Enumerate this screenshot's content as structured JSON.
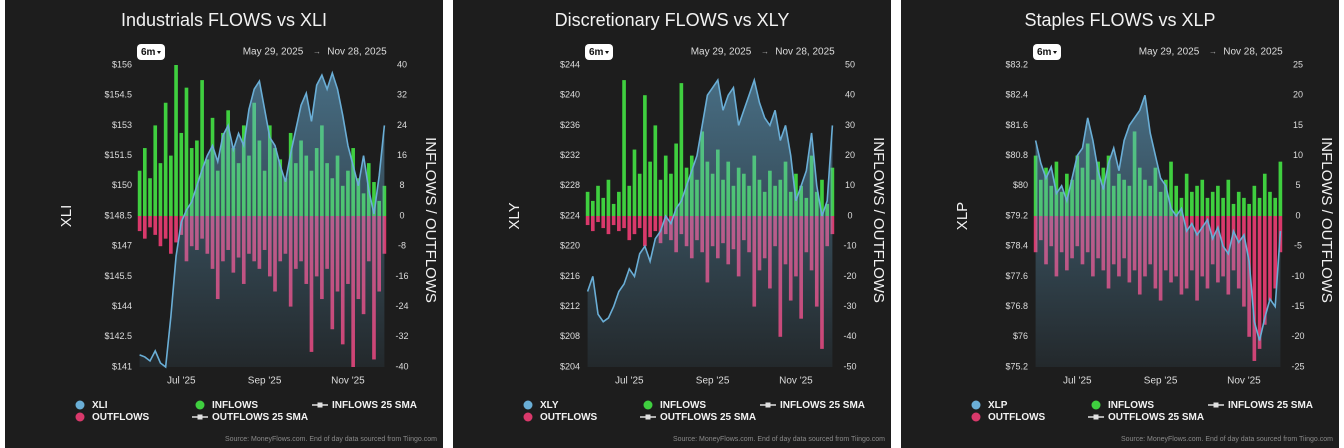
{
  "chart_data": [
    {
      "type": "combo",
      "title": "Industrials FLOWS vs XLI",
      "range_button": "6m",
      "date_start": "May 29, 2025",
      "date_separator": "→",
      "date_end": "Nov 28, 2025",
      "source": "Source: MoneyFlows.com. End of day data sourced from Tiingo.com",
      "ylabel": "XLI",
      "y2label": "INFLOWS / OUTFLOWS",
      "categories": [
        null,
        null,
        null,
        null,
        null,
        null,
        null,
        null,
        "Jul '25",
        null,
        null,
        null,
        null,
        null,
        null,
        null,
        null,
        null,
        null,
        null,
        null,
        null,
        null,
        null,
        "Sep '25",
        null,
        null,
        null,
        null,
        null,
        null,
        null,
        null,
        null,
        null,
        null,
        null,
        null,
        null,
        null,
        "Nov '25",
        null,
        null,
        null,
        null,
        null,
        null,
        null
      ],
      "ylim": [
        141,
        156
      ],
      "yticks": [
        {
          "value": 141,
          "label": "$141"
        },
        {
          "value": 142.5,
          "label": "$142.5"
        },
        {
          "value": 144,
          "label": "$144"
        },
        {
          "value": 145.5,
          "label": "$145.5"
        },
        {
          "value": 147,
          "label": "$147"
        },
        {
          "value": 148.5,
          "label": "$148.5"
        },
        {
          "value": 150,
          "label": "$150"
        },
        {
          "value": 151.5,
          "label": "$151.5"
        },
        {
          "value": 153,
          "label": "$153"
        },
        {
          "value": 154.5,
          "label": "$154.5"
        },
        {
          "value": 156,
          "label": "$156"
        }
      ],
      "y2lim": [
        -40,
        40
      ],
      "y2ticks": [
        -40,
        -32,
        -24,
        -16,
        -8,
        0,
        8,
        16,
        24,
        32,
        40
      ],
      "series": [
        {
          "name": "XLI",
          "kind": "area",
          "color": "#6aaed6",
          "values": [
            141.6,
            141.5,
            141.3,
            141.8,
            141.2,
            141.0,
            143.5,
            146.5,
            148.2,
            148.8,
            149.2,
            150.0,
            150.8,
            151.5,
            152.0,
            151.2,
            152.5,
            153.0,
            151.8,
            152.6,
            152.0,
            153.8,
            154.8,
            155.2,
            153.8,
            152.4,
            152.0,
            151.0,
            150.2,
            151.6,
            152.8,
            154.0,
            154.6,
            153.2,
            155.0,
            155.5,
            154.8,
            155.6,
            154.8,
            153.5,
            152.0,
            151.0,
            150.0,
            151.5,
            149.8,
            148.6,
            150.5,
            153.0
          ]
        },
        {
          "name": "INFLOWS",
          "kind": "bar",
          "axis": "y2",
          "color": "#3fcf3f",
          "values": [
            12,
            18,
            10,
            24,
            14,
            30,
            16,
            40,
            22,
            34,
            18,
            20,
            36,
            15,
            26,
            12,
            22,
            28,
            18,
            14,
            24,
            16,
            30,
            20,
            12,
            24,
            18,
            15,
            10,
            22,
            14,
            20,
            16,
            12,
            18,
            24,
            14,
            10,
            16,
            8,
            12,
            18,
            10,
            6,
            14,
            9,
            4,
            8
          ]
        },
        {
          "name": "OUTFLOWS",
          "kind": "bar",
          "axis": "y2",
          "color": "#d9396b",
          "values": [
            -4,
            -6,
            -3,
            -5,
            -8,
            -6,
            -10,
            -7,
            -5,
            -12,
            -8,
            -9,
            -6,
            -10,
            -14,
            -22,
            -12,
            -9,
            -15,
            -11,
            -18,
            -10,
            -12,
            -14,
            -9,
            -16,
            -20,
            -12,
            -10,
            -24,
            -14,
            -12,
            -18,
            -36,
            -16,
            -22,
            -14,
            -30,
            -20,
            -34,
            -18,
            -40,
            -22,
            -26,
            -12,
            -38,
            -20,
            -10
          ]
        },
        {
          "name": "INFLOWS 25 SMA",
          "kind": "sma",
          "color": "#e0e0e0"
        },
        {
          "name": "OUTFLOWS 25 SMA",
          "kind": "sma",
          "color": "#e0e0e0"
        }
      ]
    },
    {
      "type": "combo",
      "title": "Discretionary FLOWS vs XLY",
      "range_button": "6m",
      "date_start": "May 29, 2025",
      "date_separator": "→",
      "date_end": "Nov 28, 2025",
      "source": "Source: MoneyFlows.com. End of day data sourced from Tiingo.com",
      "ylabel": "XLY",
      "y2label": "INFLOWS / OUTFLOWS",
      "categories": [
        null,
        null,
        null,
        null,
        null,
        null,
        null,
        null,
        "Jul '25",
        null,
        null,
        null,
        null,
        null,
        null,
        null,
        null,
        null,
        null,
        null,
        null,
        null,
        null,
        null,
        "Sep '25",
        null,
        null,
        null,
        null,
        null,
        null,
        null,
        null,
        null,
        null,
        null,
        null,
        null,
        null,
        null,
        "Nov '25",
        null,
        null,
        null,
        null,
        null,
        null,
        null
      ],
      "ylim": [
        204,
        244
      ],
      "yticks": [
        {
          "value": 204,
          "label": "$204"
        },
        {
          "value": 208,
          "label": "$208"
        },
        {
          "value": 212,
          "label": "$212"
        },
        {
          "value": 216,
          "label": "$216"
        },
        {
          "value": 220,
          "label": "$220"
        },
        {
          "value": 224,
          "label": "$224"
        },
        {
          "value": 228,
          "label": "$228"
        },
        {
          "value": 232,
          "label": "$232"
        },
        {
          "value": 236,
          "label": "$236"
        },
        {
          "value": 240,
          "label": "$240"
        },
        {
          "value": 244,
          "label": "$244"
        }
      ],
      "y2lim": [
        -50,
        50
      ],
      "y2ticks": [
        -50,
        -40,
        -30,
        -20,
        -10,
        0,
        10,
        20,
        30,
        40,
        50
      ],
      "series": [
        {
          "name": "XLY",
          "kind": "area",
          "color": "#6aaed6",
          "values": [
            214,
            216,
            211,
            210,
            210.5,
            212,
            214,
            215,
            217,
            216,
            219,
            220,
            218,
            221,
            222,
            224,
            223,
            225,
            226,
            228,
            230,
            232,
            236,
            240,
            241,
            242,
            238,
            240,
            241,
            236,
            238,
            240,
            242,
            239,
            237,
            236,
            238,
            234,
            236,
            232,
            226,
            228,
            230,
            235,
            228,
            224,
            226,
            236
          ]
        },
        {
          "name": "INFLOWS",
          "kind": "bar",
          "axis": "y2",
          "color": "#3fcf3f",
          "values": [
            8,
            5,
            10,
            6,
            12,
            4,
            8,
            45,
            10,
            22,
            14,
            40,
            18,
            30,
            12,
            20,
            14,
            24,
            44,
            16,
            20,
            12,
            28,
            18,
            14,
            22,
            12,
            18,
            10,
            16,
            14,
            10,
            20,
            12,
            8,
            15,
            10,
            12,
            18,
            8,
            14,
            10,
            6,
            20,
            8,
            12,
            4,
            16
          ]
        },
        {
          "name": "OUTFLOWS",
          "kind": "bar",
          "axis": "y2",
          "color": "#d9396b",
          "values": [
            -3,
            -5,
            -2,
            -4,
            -6,
            -3,
            -5,
            -4,
            -8,
            -6,
            -4,
            -10,
            -7,
            -5,
            -9,
            -6,
            -8,
            -12,
            -6,
            -10,
            -14,
            -8,
            -12,
            -22,
            -10,
            -14,
            -9,
            -16,
            -11,
            -20,
            -8,
            -12,
            -30,
            -18,
            -14,
            -24,
            -10,
            -40,
            -16,
            -28,
            -20,
            -34,
            -12,
            -18,
            -30,
            -44,
            -10,
            -6
          ]
        },
        {
          "name": "INFLOWS 25 SMA",
          "kind": "sma",
          "color": "#e0e0e0"
        },
        {
          "name": "OUTFLOWS 25 SMA",
          "kind": "sma",
          "color": "#e0e0e0"
        }
      ]
    },
    {
      "type": "combo",
      "title": "Staples FLOWS vs XLP",
      "range_button": "6m",
      "date_start": "May 29, 2025",
      "date_separator": "→",
      "date_end": "Nov 28, 2025",
      "source": "Source: MoneyFlows.com. End of day data sourced from Tiingo.com",
      "ylabel": "XLP",
      "y2label": "INFLOWS / OUTFLOWS",
      "categories": [
        null,
        null,
        null,
        null,
        null,
        null,
        null,
        null,
        "Jul '25",
        null,
        null,
        null,
        null,
        null,
        null,
        null,
        null,
        null,
        null,
        null,
        null,
        null,
        null,
        null,
        "Sep '25",
        null,
        null,
        null,
        null,
        null,
        null,
        null,
        null,
        null,
        null,
        null,
        null,
        null,
        null,
        null,
        "Nov '25",
        null,
        null,
        null,
        null,
        null,
        null,
        null
      ],
      "ylim": [
        75.2,
        83.2
      ],
      "yticks": [
        {
          "value": 75.2,
          "label": "$75.2"
        },
        {
          "value": 76,
          "label": "$76"
        },
        {
          "value": 76.8,
          "label": "$76.8"
        },
        {
          "value": 77.6,
          "label": "$77.6"
        },
        {
          "value": 78.4,
          "label": "$78.4"
        },
        {
          "value": 79.2,
          "label": "$79.2"
        },
        {
          "value": 80,
          "label": "$80"
        },
        {
          "value": 80.8,
          "label": "$80.8"
        },
        {
          "value": 81.6,
          "label": "$81.6"
        },
        {
          "value": 82.4,
          "label": "$82.4"
        },
        {
          "value": 83.2,
          "label": "$83.2"
        }
      ],
      "y2lim": [
        -25,
        25
      ],
      "y2ticks": [
        -25,
        -20,
        -15,
        -10,
        -5,
        0,
        5,
        10,
        15,
        20,
        25
      ],
      "series": [
        {
          "name": "XLP",
          "kind": "area",
          "color": "#6aaed6",
          "values": [
            81.2,
            80.6,
            80.2,
            80.5,
            79.8,
            80.0,
            79.6,
            80.2,
            80.8,
            81.0,
            81.8,
            81.2,
            80.4,
            79.9,
            80.6,
            81.0,
            80.4,
            81.2,
            81.6,
            81.8,
            82.0,
            82.4,
            81.4,
            80.8,
            80.2,
            80.0,
            79.4,
            79.2,
            79.4,
            78.8,
            79.0,
            78.7,
            78.9,
            79.1,
            78.6,
            78.9,
            78.4,
            78.2,
            78.8,
            78.5,
            78.7,
            78.0,
            76.4,
            75.9,
            76.5,
            77.0,
            76.8,
            78.8
          ]
        },
        {
          "name": "INFLOWS",
          "kind": "bar",
          "axis": "y2",
          "color": "#3fcf3f",
          "values": [
            10,
            6,
            8,
            5,
            9,
            4,
            7,
            6,
            10,
            8,
            12,
            6,
            9,
            8,
            10,
            5,
            7,
            6,
            5,
            14,
            8,
            6,
            5,
            8,
            4,
            6,
            9,
            5,
            3,
            7,
            4,
            5,
            6,
            3,
            4,
            5,
            3,
            6,
            2,
            4,
            3,
            2,
            5,
            3,
            7,
            4,
            3,
            9
          ]
        },
        {
          "name": "OUTFLOWS",
          "kind": "bar",
          "axis": "y2",
          "color": "#d9396b",
          "values": [
            -6,
            -4,
            -8,
            -5,
            -10,
            -6,
            -9,
            -7,
            -5,
            -8,
            -6,
            -10,
            -7,
            -9,
            -12,
            -8,
            -10,
            -7,
            -11,
            -9,
            -13,
            -10,
            -8,
            -12,
            -14,
            -9,
            -11,
            -10,
            -13,
            -12,
            -9,
            -14,
            -10,
            -12,
            -8,
            -11,
            -10,
            -13,
            -9,
            -12,
            -15,
            -20,
            -24,
            -22,
            -18,
            -14,
            -12,
            -6
          ]
        },
        {
          "name": "INFLOWS 25 SMA",
          "kind": "sma",
          "color": "#e0e0e0"
        },
        {
          "name": "OUTFLOWS 25 SMA",
          "kind": "sma",
          "color": "#e0e0e0"
        }
      ]
    }
  ]
}
